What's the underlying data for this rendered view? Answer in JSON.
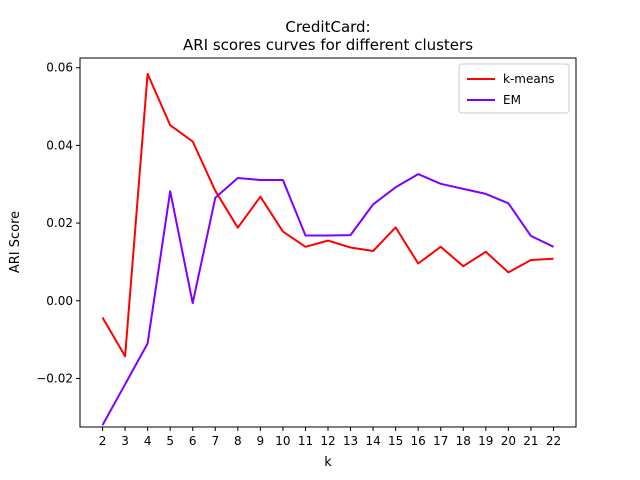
{
  "chart_data": {
    "type": "line",
    "title_line1": "CreditCard:",
    "title_line2": "ARI scores curves for different clusters",
    "xlabel": "k",
    "ylabel": "ARI Score",
    "x": [
      2,
      3,
      4,
      5,
      6,
      7,
      8,
      9,
      10,
      11,
      12,
      13,
      14,
      15,
      16,
      17,
      18,
      19,
      20,
      21,
      22
    ],
    "xticks": [
      "2",
      "3",
      "4",
      "5",
      "6",
      "7",
      "8",
      "9",
      "10",
      "11",
      "12",
      "13",
      "14",
      "15",
      "16",
      "17",
      "18",
      "19",
      "20",
      "21",
      "22"
    ],
    "xlim": [
      1.0,
      23.0
    ],
    "ylim": [
      -0.0325,
      0.0625
    ],
    "yticks": [
      -0.02,
      0.0,
      0.02,
      0.04,
      0.06
    ],
    "yticklabels": [
      "−0.02",
      "0.00",
      "0.02",
      "0.04",
      "0.06"
    ],
    "legend_position": "upper right",
    "grid": false,
    "series": [
      {
        "name": "k-means",
        "color": "#ff0000",
        "values": [
          -0.0043,
          -0.0143,
          0.0584,
          0.0452,
          0.041,
          0.0283,
          0.0188,
          0.0268,
          0.0178,
          0.0139,
          0.0155,
          0.0137,
          0.0128,
          0.0189,
          0.0096,
          0.0139,
          0.0089,
          0.0126,
          0.0073,
          0.0105,
          0.0108
        ]
      },
      {
        "name": "EM",
        "color": "#8000ff",
        "values": [
          -0.032,
          -0.0215,
          -0.011,
          0.0282,
          -0.0006,
          0.0265,
          0.0316,
          0.0311,
          0.0311,
          0.0168,
          0.0168,
          0.0169,
          0.0248,
          0.0292,
          0.0326,
          0.0301,
          0.0288,
          0.0275,
          0.0251,
          0.0167,
          0.0139
        ]
      }
    ]
  }
}
